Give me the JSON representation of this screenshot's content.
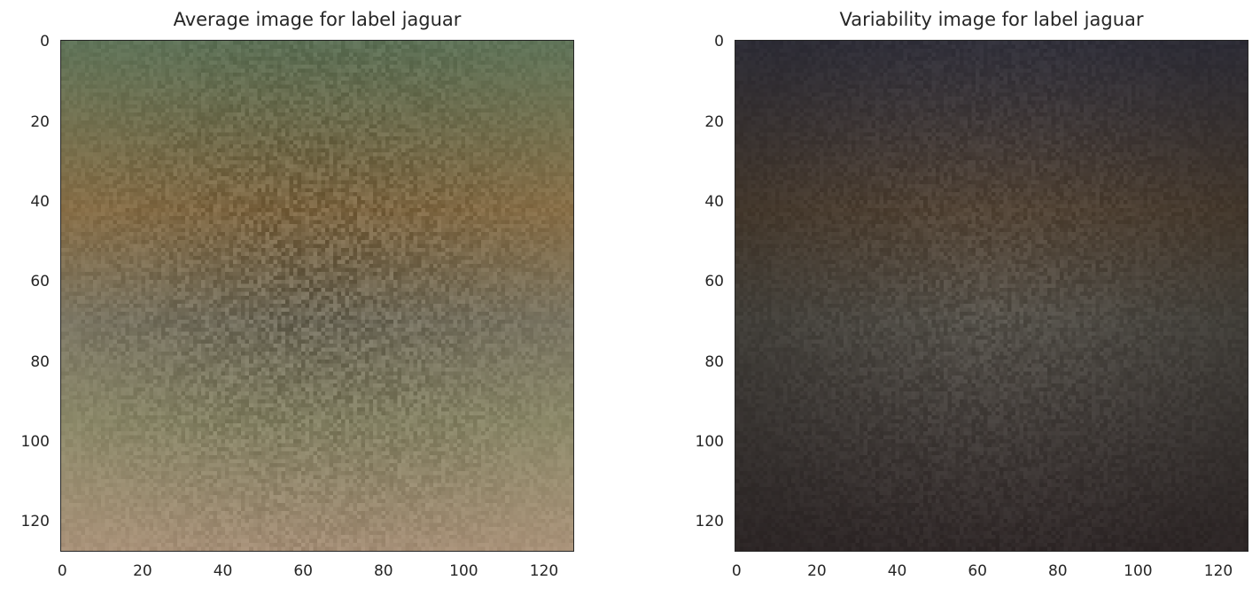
{
  "chart_data": [
    {
      "type": "heatmap",
      "title": "Average image for label jaguar",
      "x_ticks": [
        "0",
        "20",
        "40",
        "60",
        "80",
        "100",
        "120"
      ],
      "y_ticks": [
        "0",
        "20",
        "40",
        "60",
        "80",
        "100",
        "120"
      ],
      "xlim": [
        -0.5,
        127.5
      ],
      "ylim": [
        127.5,
        -0.5
      ],
      "image_size": [
        128,
        128
      ],
      "grid": false,
      "colors": {
        "top": "#5f7358",
        "upper_middle": "#8a7048",
        "middle": "#7d7865",
        "lower": "#8d8a6a",
        "bottom": "#a89178"
      }
    },
    {
      "type": "heatmap",
      "title": "Variability image for label jaguar",
      "x_ticks": [
        "0",
        "20",
        "40",
        "60",
        "80",
        "100",
        "120"
      ],
      "y_ticks": [
        "0",
        "20",
        "40",
        "60",
        "80",
        "100",
        "120"
      ],
      "xlim": [
        -0.5,
        127.5
      ],
      "ylim": [
        127.5,
        -0.5
      ],
      "image_size": [
        128,
        128
      ],
      "grid": false,
      "colors": {
        "top": "#35343f",
        "upper_middle": "#4a3d30",
        "middle": "#48453f",
        "lower": "#3f3a37",
        "bottom": "#342c2c"
      }
    }
  ]
}
